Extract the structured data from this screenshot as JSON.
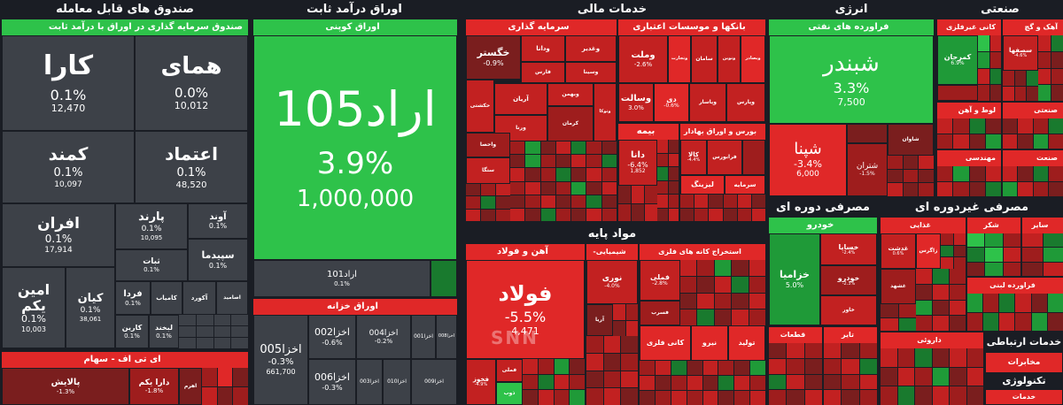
{
  "sections": {
    "funds": {
      "title": "صندوق های قابل معامله",
      "fixed_income_group": "صندوق سرمایه گذاری در اوراق با درآمد ثابت",
      "tiles": [
        {
          "name": "کارا",
          "pct": "0.1%",
          "vol": "12,470"
        },
        {
          "name": "همای",
          "pct": "0.0%",
          "vol": "10,012"
        },
        {
          "name": "کمند",
          "pct": "0.1%",
          "vol": "10,097"
        },
        {
          "name": "اعتماد",
          "pct": "0.1%",
          "vol": "48,520"
        },
        {
          "name": "افران",
          "pct": "0.1%",
          "vol": "17,914"
        },
        {
          "name": "پارند",
          "pct": "0.1%",
          "vol": "10,095"
        },
        {
          "name": "آوند",
          "pct": "0.1%",
          "vol": ""
        },
        {
          "name": "ثبات",
          "pct": "0.1%",
          "vol": ""
        },
        {
          "name": "سپیدما",
          "pct": "0.1%",
          "vol": ""
        },
        {
          "name": "امین یکم",
          "pct": "0.1%",
          "vol": "10,003"
        },
        {
          "name": "کیان",
          "pct": "0.1%",
          "vol": "38,061"
        },
        {
          "name": "فردا",
          "pct": "0.1%",
          "vol": ""
        },
        {
          "name": "کامیاب",
          "pct": "",
          "vol": ""
        },
        {
          "name": "آکورد",
          "pct": "",
          "vol": ""
        },
        {
          "name": "اصامید",
          "pct": "",
          "vol": ""
        },
        {
          "name": "کارین",
          "pct": "0.1%",
          "vol": ""
        },
        {
          "name": "لبخند",
          "pct": "0.1%",
          "vol": ""
        }
      ],
      "etf_group": "ای تی اف - سهام",
      "etf_tiles": [
        {
          "name": "پالایش",
          "pct": "-1.3%"
        },
        {
          "name": "دارا یکم",
          "pct": "-1.8%"
        },
        {
          "name": "اهرم",
          "pct": ""
        }
      ]
    },
    "bonds": {
      "title": "اوراق درآمد ثابت",
      "coupon_group": "اوراق کوپنی",
      "big": {
        "name": "اراد105",
        "pct": "3.9%",
        "vol": "1,000,000"
      },
      "small": {
        "name": "اراد101",
        "pct": "0.1%"
      },
      "treasury_group": "اوراق خزانه",
      "treasury": [
        {
          "name": "اخزا005",
          "pct": "-0.3%",
          "vol": "661,700"
        },
        {
          "name": "اخزا002",
          "pct": "-0.6%"
        },
        {
          "name": "اخزا004",
          "pct": "-0.2%"
        },
        {
          "name": "اخزا001",
          "pct": ""
        },
        {
          "name": "اخزا008",
          "pct": ""
        },
        {
          "name": "اخزا006",
          "pct": "-0.3%"
        },
        {
          "name": "اخزا003",
          "pct": ""
        },
        {
          "name": "اخزا010",
          "pct": ""
        },
        {
          "name": "اخزا009",
          "pct": ""
        }
      ]
    },
    "finance": {
      "title": "خدمات مالی",
      "invest_group": "سرمایه گذاری",
      "invest": [
        {
          "name": "خگستر",
          "pct": "-0.9%"
        },
        {
          "name": "ودانا"
        },
        {
          "name": "وغدیر"
        },
        {
          "name": "وسینا"
        },
        {
          "name": "فارس"
        },
        {
          "name": "آریان"
        },
        {
          "name": "وبهمن"
        },
        {
          "name": "حکشتی"
        },
        {
          "name": "ورنا"
        },
        {
          "name": "کرمان"
        },
        {
          "name": "وتوکا"
        },
        {
          "name": "واحصا"
        },
        {
          "name": "ستگا"
        }
      ],
      "banks_group": "بانکها و موسسات اعتباری",
      "banks": [
        {
          "name": "وملت",
          "pct": "-2.6%"
        },
        {
          "name": "وتجارت"
        },
        {
          "name": "سامان"
        },
        {
          "name": "ونوین"
        },
        {
          "name": "وبصادر"
        },
        {
          "name": "وسالت",
          "pct": "3.0%"
        },
        {
          "name": "دی",
          "pct": "-0.6%"
        },
        {
          "name": "وپاسار"
        },
        {
          "name": "وپارس"
        }
      ],
      "insurance_group": "بیمه",
      "insurance": [
        {
          "name": "دانا",
          "pct": "-6.4%",
          "vol": "1,852"
        }
      ],
      "misc_group": "فعالیتهای کمکی به نهادهای مالی واسط",
      "misc": [
        {
          "name": "کالا",
          "pct": "-4.4%"
        },
        {
          "name": "فرابورس"
        }
      ],
      "other_groups": [
        "بورس و اوراق بهادار",
        "لیزینگ",
        "سرمایه"
      ]
    },
    "basic": {
      "title": "مواد پایه",
      "steel_group": "آهن و فولاد",
      "steel": [
        {
          "name": "فولاد",
          "pct": "-5.5%",
          "vol": "4,471"
        },
        {
          "name": "فخوز",
          "pct": "-4.9%"
        },
        {
          "name": "فملی"
        },
        {
          "name": "ذوب"
        }
      ],
      "chem_group": "شیمیایی-متنوع",
      "chem": [
        {
          "name": "نوری",
          "pct": "-4.0%"
        },
        {
          "name": "آریا"
        }
      ],
      "mineral_group": "استخراج کانه های فلزی",
      "mineral": [
        {
          "name": "فملی",
          "pct": "-2.8%"
        },
        {
          "name": "فسرب"
        }
      ],
      "other_groups": [
        "کانی فلزی",
        "نیرو",
        "تولید"
      ]
    },
    "energy": {
      "title": "انرژی",
      "oil_group": "فراورده های نفتی",
      "oil": [
        {
          "name": "شبندر",
          "pct": "3.3%",
          "vol": "7,500"
        },
        {
          "name": "شپنا",
          "pct": "-3.4%",
          "vol": "6,000"
        },
        {
          "name": "شتران",
          "pct": "-1.5%"
        },
        {
          "name": "شاوان"
        }
      ]
    },
    "industrial": {
      "title": "صنعتی",
      "groups": [
        "کانی غیرفلزی",
        "آهک و گچ",
        "کمرجان",
        "صنعتی",
        "لوط و آهن",
        "کاشی",
        "مهندسی",
        "صنعت"
      ],
      "tiles": [
        {
          "name": "کمرجان",
          "pct": "6.9%"
        },
        {
          "name": "سصفها",
          "pct": "-4.6%"
        }
      ]
    },
    "cyclical": {
      "title": "مصرفی دوره ای",
      "auto_group": "خودرو",
      "auto": [
        {
          "name": "خزامیا",
          "pct": "5.0%"
        },
        {
          "name": "خساپا",
          "pct": "-2.4%"
        },
        {
          "name": "خودرو",
          "pct": "-2.3%"
        },
        {
          "name": "خاور"
        }
      ],
      "groups": [
        "قطعات خودرو",
        "تایر",
        "منسوجات",
        "مهندسی"
      ]
    },
    "noncyclical": {
      "title": "مصرفی غیردوره ای",
      "groups": [
        "داروئی",
        "شکر",
        "سایر",
        "قندی",
        "نوشیدنی",
        "آرایشی",
        "نان",
        "غذایی",
        "کشاورزی",
        "فراورده لبنی"
      ],
      "tiles": [
        {
          "name": "غدشت",
          "pct": "0.6%"
        },
        {
          "name": "زاگرس",
          "pct": ""
        },
        {
          "name": "غشهد",
          "pct": ""
        }
      ]
    },
    "comm": {
      "title": "خدمات ارتباطی",
      "groups": [
        "مخابرات",
        "ارتباطات"
      ]
    },
    "tech": {
      "title": "تکنولوژی",
      "groups": [
        "خدمات"
      ]
    }
  },
  "watermark": "SNN",
  "colors": {
    "bg": "#1a1d24",
    "up": "#2ec24a",
    "down": "#e02828",
    "neutral": "#3d4148"
  }
}
